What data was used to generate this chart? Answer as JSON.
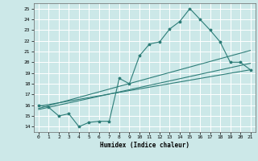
{
  "xlabel": "Humidex (Indice chaleur)",
  "xlim": [
    -0.5,
    21.5
  ],
  "ylim": [
    13.5,
    25.5
  ],
  "xticks": [
    0,
    1,
    2,
    3,
    4,
    5,
    6,
    7,
    8,
    9,
    10,
    11,
    12,
    13,
    14,
    15,
    16,
    17,
    18,
    19,
    20,
    21
  ],
  "yticks": [
    14,
    15,
    16,
    17,
    18,
    19,
    20,
    21,
    22,
    23,
    24,
    25
  ],
  "bg_color": "#cce8e8",
  "grid_color": "#ffffff",
  "line_color": "#2d7d78",
  "main_x": [
    0,
    1,
    2,
    3,
    4,
    5,
    6,
    7,
    8,
    9,
    10,
    11,
    12,
    13,
    14,
    15,
    16,
    17,
    18,
    19,
    20,
    21
  ],
  "main_y": [
    16,
    15.8,
    15.0,
    15.2,
    14.0,
    14.4,
    14.5,
    14.5,
    18.5,
    18.0,
    20.6,
    21.7,
    21.9,
    23.1,
    23.8,
    25.0,
    24.0,
    23.0,
    21.9,
    20.0,
    20.0,
    19.3
  ],
  "trend1_x": [
    0,
    21
  ],
  "trend1_y": [
    15.9,
    19.3
  ],
  "trend2_x": [
    0,
    21
  ],
  "trend2_y": [
    15.6,
    19.9
  ],
  "trend3_x": [
    0,
    21
  ],
  "trend3_y": [
    15.7,
    21.1
  ]
}
